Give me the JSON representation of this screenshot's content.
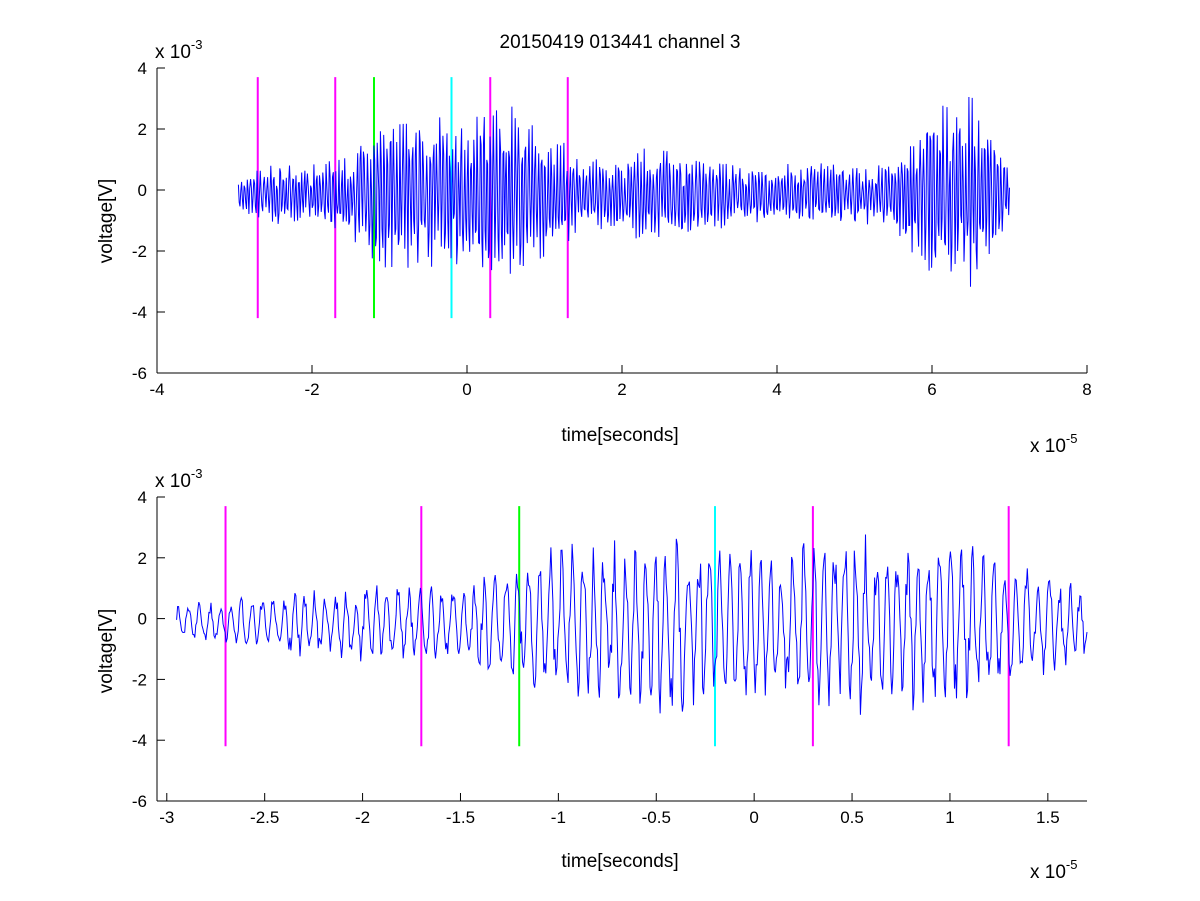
{
  "figure": {
    "title": "20150419 013441 channel 3"
  },
  "chart_data": [
    {
      "type": "line",
      "title": "20150419 013441 channel 3",
      "xlabel": "time[seconds]",
      "ylabel": "voltage[V]",
      "x_multiplier": "x 10",
      "x_exponent": "-5",
      "y_multiplier": "x 10",
      "y_exponent": "-3",
      "xlim": [
        -4,
        8
      ],
      "ylim": [
        -6,
        4
      ],
      "xticks": [
        -4,
        -2,
        0,
        2,
        4,
        6,
        8
      ],
      "xtick_labels": [
        "-4",
        "-2",
        "0",
        "2",
        "4",
        "6",
        "8"
      ],
      "yticks": [
        -6,
        -4,
        -2,
        0,
        2,
        4
      ],
      "ytick_labels": [
        "-6",
        "-4",
        "-2",
        "0",
        "2",
        "4"
      ],
      "grid": false,
      "series": [
        {
          "color": "#0000ff",
          "x_range": [
            -2.95,
            7.0
          ],
          "x": [
            -2.95,
            -2.5,
            -2.0,
            -1.5,
            -1.0,
            -0.5,
            0.0,
            0.5,
            1.0,
            1.5,
            2.0,
            2.5,
            3.0,
            3.5,
            4.0,
            4.5,
            5.0,
            5.5,
            6.0,
            6.5,
            7.0
          ],
          "amplitude": [
            0.6,
            1.0,
            1.1,
            1.5,
            2.9,
            2.5,
            2.7,
            3.0,
            2.3,
            1.2,
            1.4,
            1.6,
            1.5,
            1.0,
            1.0,
            1.1,
            1.0,
            1.0,
            3.2,
            3.3,
            1.0
          ]
        }
      ],
      "markers": [
        {
          "x": -2.7,
          "color": "#ff00ff",
          "y_range": [
            -4.2,
            3.7
          ]
        },
        {
          "x": -1.7,
          "color": "#ff00ff",
          "y_range": [
            -4.2,
            3.7
          ]
        },
        {
          "x": -1.2,
          "color": "#00ff00",
          "y_range": [
            -4.2,
            3.7
          ]
        },
        {
          "x": -0.2,
          "color": "#00ffff",
          "y_range": [
            -4.2,
            3.7
          ]
        },
        {
          "x": 0.3,
          "color": "#ff00ff",
          "y_range": [
            -4.2,
            3.7
          ]
        },
        {
          "x": 1.3,
          "color": "#ff00ff",
          "y_range": [
            -4.2,
            3.7
          ]
        }
      ]
    },
    {
      "type": "line",
      "title": "",
      "xlabel": "time[seconds]",
      "ylabel": "voltage[V]",
      "x_multiplier": "x 10",
      "x_exponent": "-5",
      "y_multiplier": "x 10",
      "y_exponent": "-3",
      "xlim": [
        -3.05,
        1.7
      ],
      "ylim": [
        -6,
        4
      ],
      "xticks": [
        -3,
        -2.5,
        -2,
        -1.5,
        -1,
        -0.5,
        0,
        0.5,
        1,
        1.5
      ],
      "xtick_labels": [
        "-3",
        "-2.5",
        "-2",
        "-1.5",
        "-1",
        "-0.5",
        "0",
        "0.5",
        "1",
        "1.5"
      ],
      "yticks": [
        -6,
        -4,
        -2,
        0,
        2,
        4
      ],
      "ytick_labels": [
        "-6",
        "-4",
        "-2",
        "0",
        "2",
        "4"
      ],
      "grid": false,
      "series": [
        {
          "color": "#0000ff",
          "x_range": [
            -2.95,
            1.7
          ],
          "x": [
            -2.95,
            -2.5,
            -2.0,
            -1.5,
            -1.3,
            -1.0,
            -0.5,
            -0.2,
            0.0,
            0.3,
            0.5,
            0.9,
            1.3,
            1.7
          ],
          "amplitude": [
            0.6,
            1.0,
            1.3,
            1.2,
            2.0,
            2.6,
            3.0,
            2.8,
            2.5,
            2.7,
            3.1,
            3.0,
            2.2,
            1.2
          ]
        }
      ],
      "markers": [
        {
          "x": -2.7,
          "color": "#ff00ff",
          "y_range": [
            -4.2,
            3.7
          ]
        },
        {
          "x": -1.7,
          "color": "#ff00ff",
          "y_range": [
            -4.2,
            3.7
          ]
        },
        {
          "x": -1.2,
          "color": "#00ff00",
          "y_range": [
            -4.2,
            3.7
          ]
        },
        {
          "x": -0.2,
          "color": "#00ffff",
          "y_range": [
            -4.2,
            3.7
          ]
        },
        {
          "x": 0.3,
          "color": "#ff00ff",
          "y_range": [
            -4.2,
            3.7
          ]
        },
        {
          "x": 1.3,
          "color": "#ff00ff",
          "y_range": [
            -4.2,
            3.7
          ]
        }
      ]
    }
  ]
}
